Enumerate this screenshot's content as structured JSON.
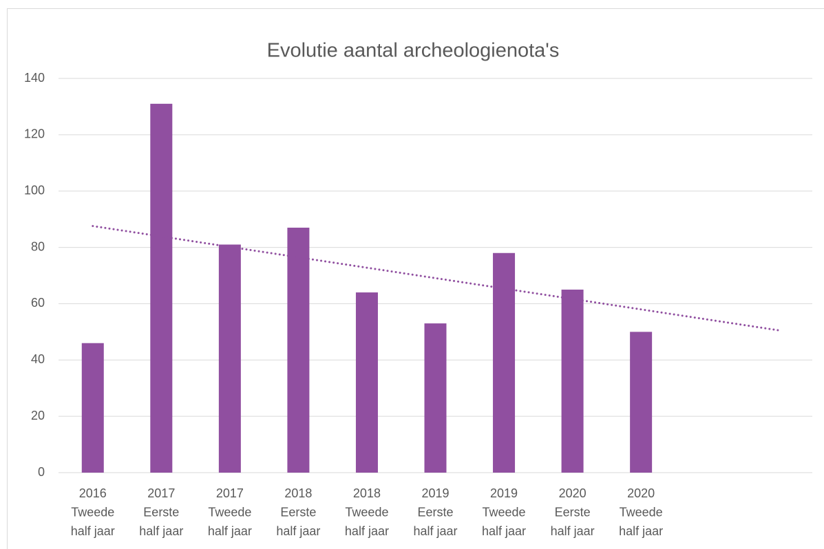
{
  "chart_data": {
    "type": "bar",
    "title": "Evolutie aantal archeologienota's",
    "categories": [
      [
        "2016",
        "Tweede",
        "half jaar"
      ],
      [
        "2017",
        "Eerste",
        "half jaar"
      ],
      [
        "2017",
        "Tweede",
        "half jaar"
      ],
      [
        "2018",
        "Eerste",
        "half jaar"
      ],
      [
        "2018",
        "Tweede",
        "half jaar"
      ],
      [
        "2019",
        "Eerste",
        "half jaar"
      ],
      [
        "2019",
        "Tweede",
        "half jaar"
      ],
      [
        "2020",
        "Eerste",
        "half jaar"
      ],
      [
        "2020",
        "Tweede",
        "half jaar"
      ],
      null,
      null
    ],
    "values": [
      46,
      131,
      81,
      87,
      64,
      53,
      78,
      65,
      50,
      null,
      null
    ],
    "color": "#904fa0",
    "trendline": {
      "type": "linear",
      "color": "#904fa0",
      "dash": "dotted"
    },
    "ylim": [
      0,
      140
    ],
    "yticks": [
      0,
      20,
      40,
      60,
      80,
      100,
      120,
      140
    ],
    "grid": true
  }
}
